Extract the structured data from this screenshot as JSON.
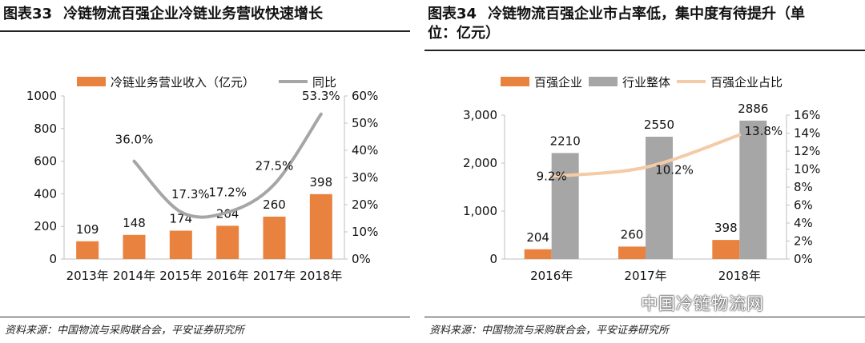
{
  "chart_data": [
    {
      "type": "bar",
      "figure_label": "图表33",
      "title": "冷链物流百强企业冷链业务营收快速增长",
      "categories": [
        "2013年",
        "2014年",
        "2015年",
        "2016年",
        "2017年",
        "2018年"
      ],
      "series": [
        {
          "name": "冷链业务营业收入（亿元）",
          "type": "bar",
          "axis": "left",
          "values": [
            109,
            148,
            174,
            204,
            260,
            398
          ],
          "labels": [
            "109",
            "148",
            "174",
            "204",
            "260",
            "398"
          ],
          "color": "#e8823e"
        },
        {
          "name": "同比",
          "type": "line",
          "axis": "right",
          "values": [
            null,
            36.0,
            17.3,
            17.2,
            27.5,
            53.3
          ],
          "labels": [
            "",
            "36.0%",
            "17.3%",
            "17.2%",
            "27.5%",
            "53.3%"
          ],
          "color": "#a6a6a6"
        }
      ],
      "ylim": [
        0,
        1000
      ],
      "yticks": [
        "0",
        "200",
        "400",
        "600",
        "800",
        "1000"
      ],
      "y2lim": [
        0,
        60
      ],
      "y2ticks": [
        "0%",
        "10%",
        "20%",
        "30%",
        "40%",
        "50%",
        "60%"
      ],
      "legend": "top-center",
      "grid": false,
      "source": "资料来源：中国物流与采购联合会，平安证券研究所"
    },
    {
      "type": "bar",
      "figure_label": "图表34",
      "title": "冷链物流百强企业市占率低，集中度有待提升（单位：亿元）",
      "title_lines": [
        "冷链物流百强企业市占率低，集中度有待提升（单",
        "位：亿元）"
      ],
      "categories": [
        "2016年",
        "2017年",
        "2018年"
      ],
      "series": [
        {
          "name": "百强企业",
          "type": "bar",
          "axis": "left",
          "values": [
            204,
            260,
            398
          ],
          "labels": [
            "204",
            "260",
            "398"
          ],
          "color": "#e8823e"
        },
        {
          "name": "行业整体",
          "type": "bar",
          "axis": "left",
          "values": [
            2210,
            2550,
            2886
          ],
          "labels": [
            "2210",
            "2550",
            "2886"
          ],
          "color": "#a6a6a6"
        },
        {
          "name": "百强企业占比",
          "type": "line",
          "axis": "right",
          "values": [
            9.2,
            10.2,
            13.8
          ],
          "labels": [
            "9.2%",
            "10.2%",
            "13.8%"
          ],
          "color": "#f4cba6"
        }
      ],
      "ylim": [
        0,
        3000
      ],
      "yticks": [
        "0",
        "1,000",
        "2,000",
        "3,000"
      ],
      "y2lim": [
        0,
        16
      ],
      "y2ticks": [
        "0%",
        "2%",
        "4%",
        "6%",
        "8%",
        "10%",
        "12%",
        "14%",
        "16%"
      ],
      "legend": "top-center",
      "grid": false,
      "source": "资料来源：中国物流与采购联合会，平安证券研究所"
    }
  ],
  "watermark": "中国冷链物流网"
}
